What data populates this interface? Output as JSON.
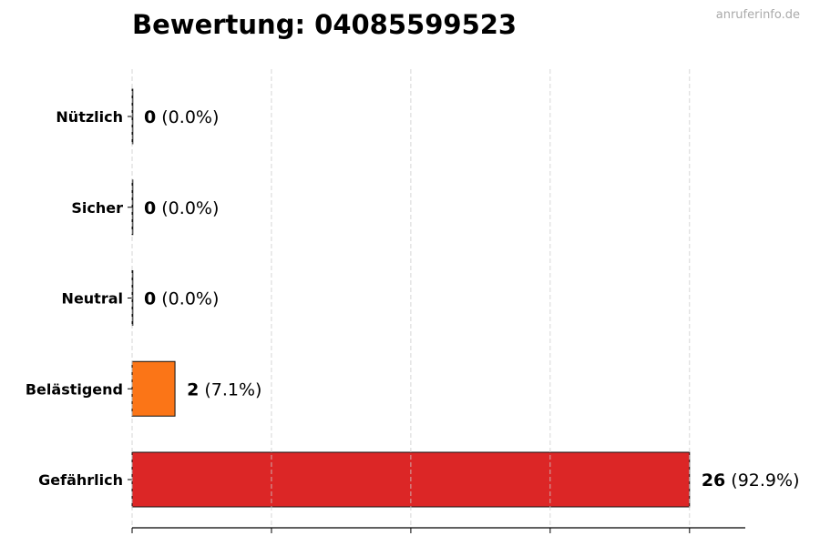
{
  "watermark": "anruferinfo.de",
  "chart_data": {
    "type": "bar",
    "orientation": "horizontal",
    "title": "Bewertung: 04085599523",
    "xlabel": "",
    "ylabel": "",
    "categories": [
      "Nützlich",
      "Sicher",
      "Neutral",
      "Belästigend",
      "Gefährlich"
    ],
    "values": [
      0,
      0,
      0,
      2,
      26
    ],
    "labels": [
      "(0.0%)",
      "(0.0%)",
      "(0.0%)",
      "(7.1%)",
      "(92.9%)"
    ],
    "colors": [
      "#2ca02c",
      "#1f77b4",
      "#7f7f7f",
      "#fb7517",
      "#dc2626"
    ],
    "xlim": [
      0,
      28.6
    ],
    "xticks": [
      0,
      6.5,
      13,
      19.5,
      26
    ],
    "xtick_labels_visible": false,
    "grid": "x, dashed"
  }
}
